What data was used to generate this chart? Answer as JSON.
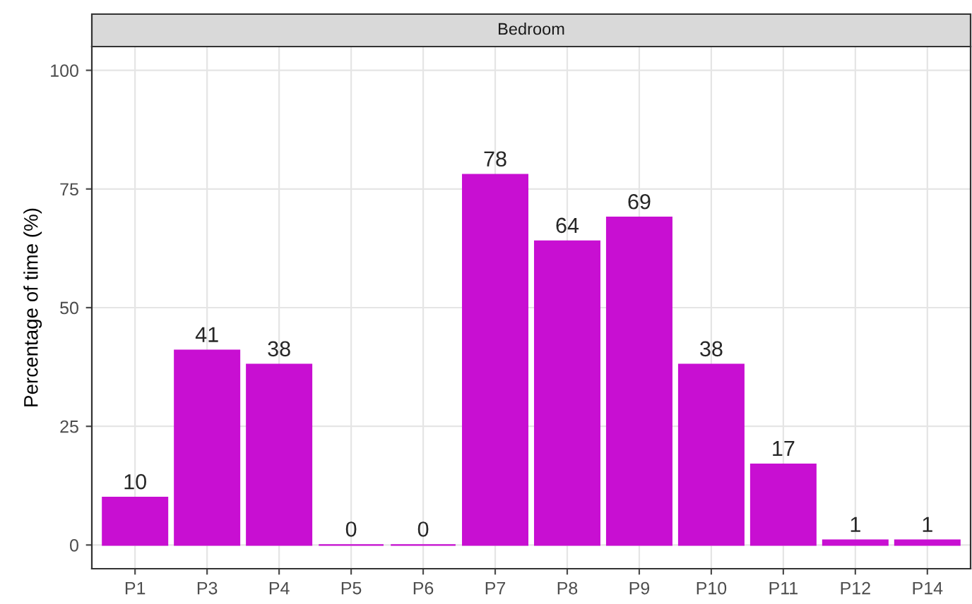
{
  "chart_data": {
    "type": "bar",
    "title": "Bedroom",
    "ylabel": "Percentage of time (%)",
    "categories": [
      "P1",
      "P3",
      "P4",
      "P5",
      "P6",
      "P7",
      "P8",
      "P9",
      "P10",
      "P11",
      "P12",
      "P14"
    ],
    "values": [
      10,
      41,
      38,
      0,
      0,
      78,
      64,
      69,
      38,
      17,
      1,
      1
    ],
    "color": "#c80fd2",
    "ylim": [
      -5,
      105
    ],
    "yticks": [
      0,
      25,
      50,
      75,
      100
    ],
    "grid": true,
    "data_labels": true
  }
}
